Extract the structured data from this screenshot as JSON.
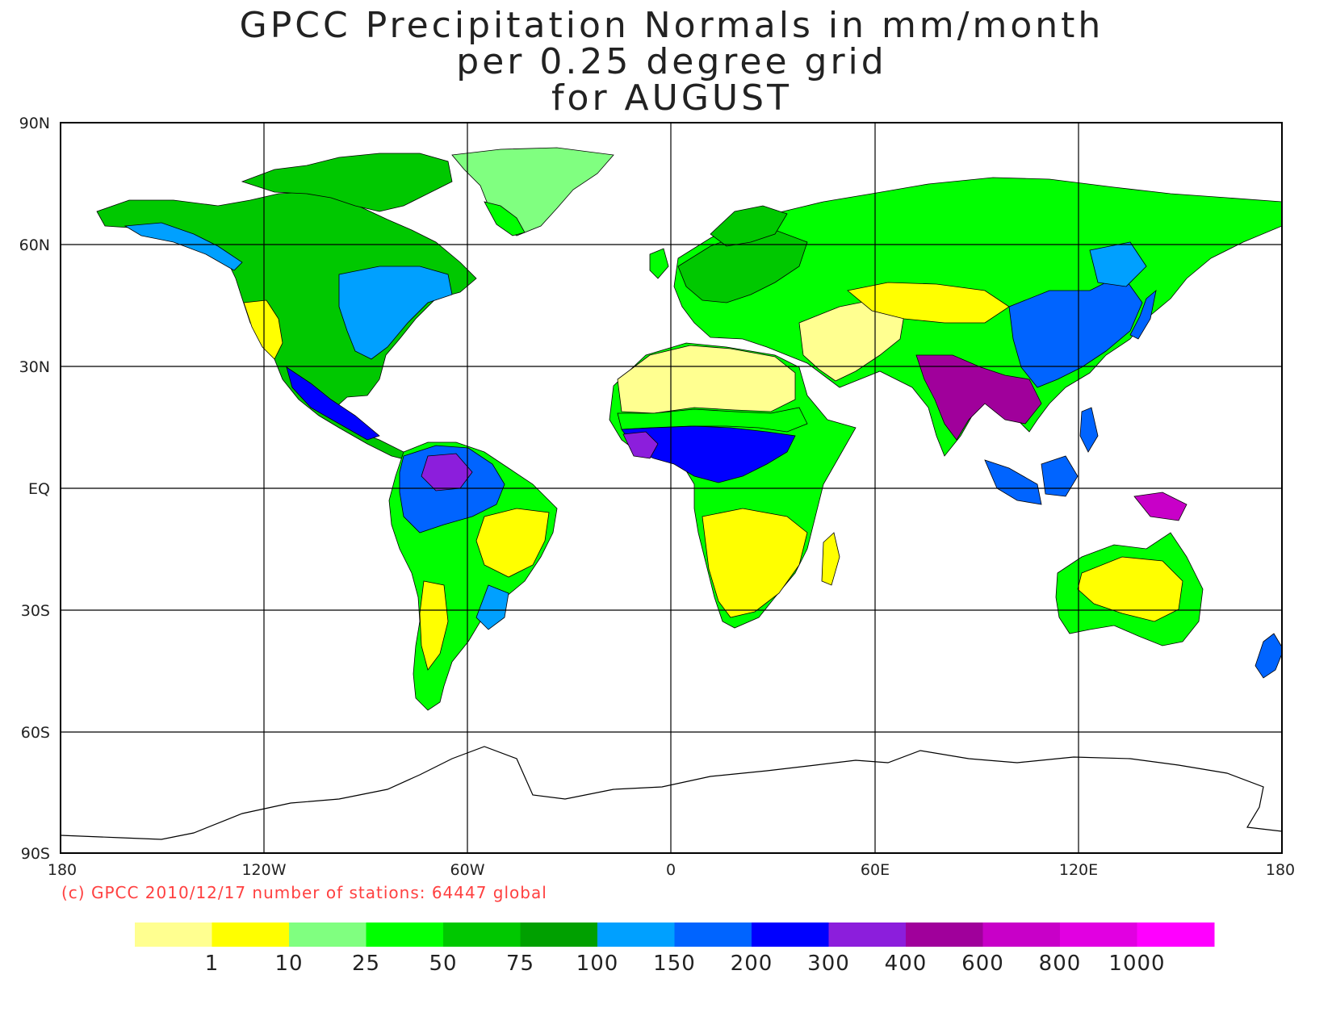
{
  "title": {
    "line1": "GPCC Precipitation Normals in mm/month",
    "line2": "per 0.25 degree grid",
    "line3": "for AUGUST"
  },
  "axes": {
    "y_labels": [
      "90N",
      "60N",
      "30N",
      "EQ",
      "30S",
      "60S",
      "90S"
    ],
    "x_labels": [
      "180",
      "120W",
      "60W",
      "0",
      "60E",
      "120E",
      "180"
    ]
  },
  "credit": "(c) GPCC 2010/12/17 number of stations: 64447 global",
  "legend": {
    "labels": [
      "1",
      "10",
      "25",
      "50",
      "75",
      "100",
      "150",
      "200",
      "300",
      "400",
      "600",
      "800",
      "1000"
    ],
    "colors": [
      "#ffff90",
      "#ffff00",
      "#80ff80",
      "#00ff00",
      "#00c800",
      "#00a000",
      "#00a0ff",
      "#0064ff",
      "#0000ff",
      "#8c1edc",
      "#a0009b",
      "#c800c8",
      "#e100e1",
      "#ff00ff"
    ]
  },
  "regions": {
    "greenland": "#80ff80",
    "sahara": "#ffff90",
    "sahel": "#00ff00",
    "central_africa": "#0000ff",
    "amazon": "#0064ff",
    "india_monsoon": "#a0009b",
    "australia_interior": "#ffff00",
    "north_america": "#00c800",
    "eurasia": "#00ff00",
    "antarctica": "#ffffff"
  }
}
